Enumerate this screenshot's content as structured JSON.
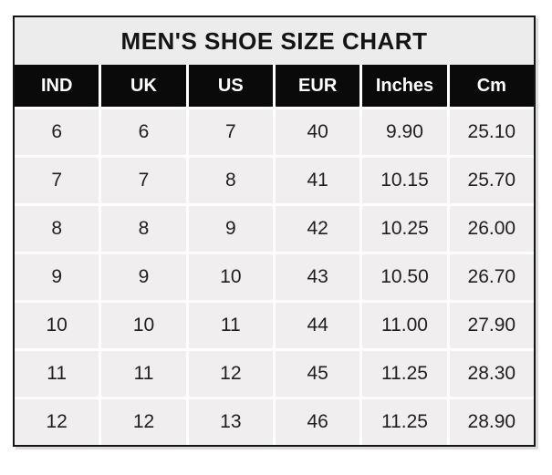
{
  "title": "MEN'S SHOE SIZE CHART",
  "chart_data": {
    "type": "table",
    "title": "MEN'S SHOE SIZE CHART",
    "columns": [
      "IND",
      "UK",
      "US",
      "EUR",
      "Inches",
      "Cm"
    ],
    "rows": [
      [
        "6",
        "6",
        "7",
        "40",
        "9.90",
        "25.10"
      ],
      [
        "7",
        "7",
        "8",
        "41",
        "10.15",
        "25.70"
      ],
      [
        "8",
        "8",
        "9",
        "42",
        "10.25",
        "26.00"
      ],
      [
        "9",
        "9",
        "10",
        "43",
        "10.50",
        "26.70"
      ],
      [
        "10",
        "10",
        "11",
        "44",
        "11.00",
        "27.90"
      ],
      [
        "11",
        "11",
        "12",
        "45",
        "11.25",
        "28.30"
      ],
      [
        "12",
        "12",
        "13",
        "46",
        "11.25",
        "28.90"
      ]
    ]
  },
  "colors": {
    "header_bg": "#0a0a0a",
    "header_text": "#ffffff",
    "cell_bg": "#f0eeef",
    "title_bg": "#edecec",
    "border": "#141414",
    "grid_line": "#ffffff",
    "body_text": "#1f1f1f"
  }
}
